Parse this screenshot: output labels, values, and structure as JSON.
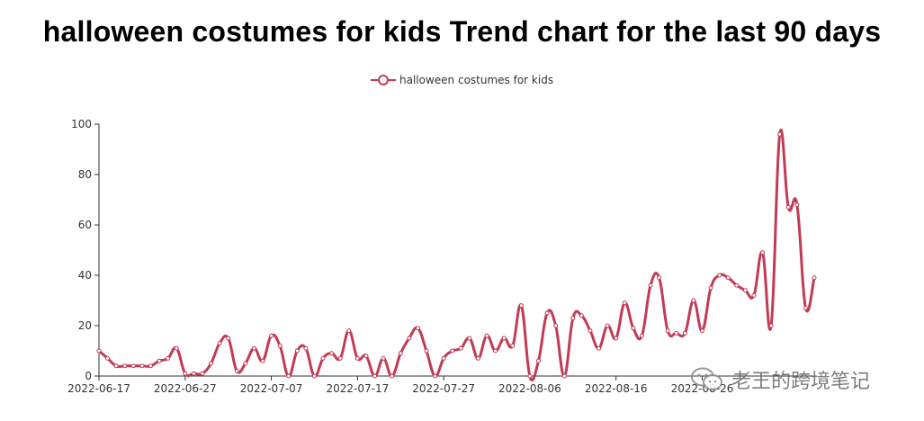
{
  "chart_data": {
    "type": "line",
    "title": "halloween costumes for kids Trend chart for the last 90 days",
    "legend": {
      "position": "top-center"
    },
    "series": [
      {
        "name": "halloween costumes for kids",
        "color": "#c23b54",
        "values": [
          10,
          7,
          4,
          4,
          4,
          4,
          4,
          6,
          7,
          11,
          1,
          1,
          1,
          5,
          13,
          15,
          2,
          5,
          11,
          6,
          16,
          12,
          0,
          10,
          11,
          0,
          7,
          9,
          7,
          18,
          7,
          8,
          0,
          7,
          0,
          9,
          15,
          19,
          10,
          0,
          7,
          10,
          11,
          15,
          7,
          16,
          10,
          15,
          12,
          28,
          0,
          6,
          25,
          20,
          0,
          23,
          24,
          18,
          11,
          20,
          15,
          29,
          19,
          16,
          36,
          39,
          18,
          17,
          17,
          30,
          18,
          35,
          40,
          39,
          36,
          34,
          32,
          49,
          20,
          96,
          67,
          68,
          27,
          39
        ]
      }
    ],
    "start_date": "2022-06-17",
    "x_ticks": [
      "2022-06-17",
      "2022-06-27",
      "2022-07-07",
      "2022-07-17",
      "2022-07-27",
      "2022-08-06",
      "2022-08-16",
      "2022-08-26"
    ],
    "y_ticks": [
      0,
      20,
      40,
      60,
      80,
      100
    ],
    "ylim": [
      0,
      100
    ],
    "grid": false,
    "smooth": true
  },
  "watermark": {
    "text": "老王的跨境笔记",
    "icon": "wechat-icon"
  }
}
